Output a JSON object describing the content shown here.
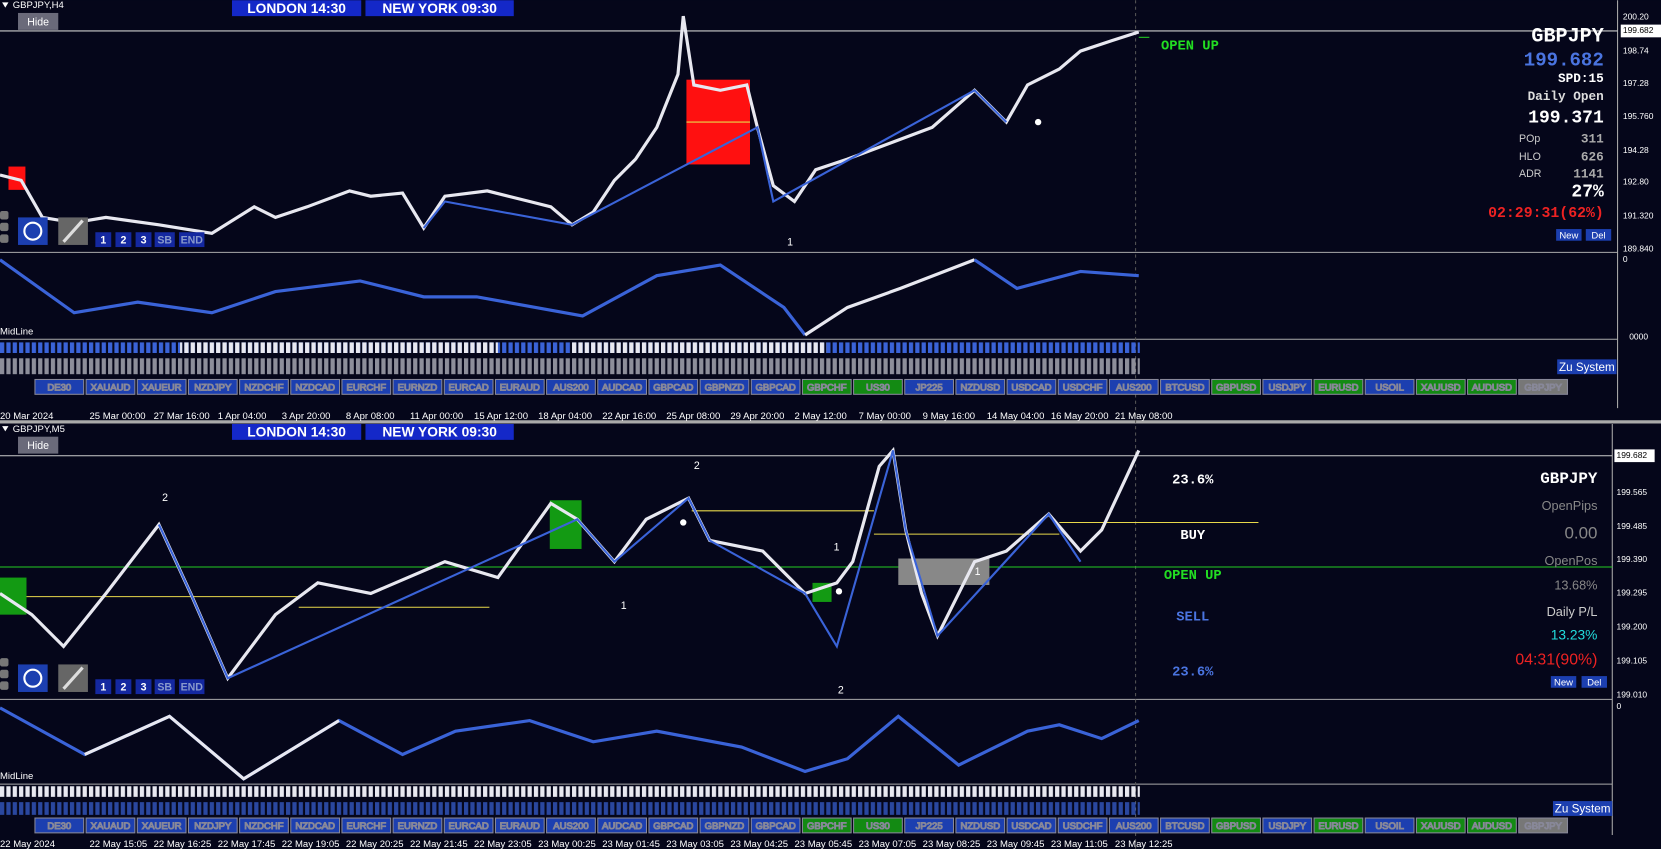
{
  "symbols": [
    {
      "label": "DE30",
      "color": "#1c3fb0"
    },
    {
      "label": "XAUAUD",
      "color": "#1c3fb0"
    },
    {
      "label": "XAUEUR",
      "color": "#1c3fb0"
    },
    {
      "label": "NZDJPY",
      "color": "#1c3fb0"
    },
    {
      "label": "NZDCHF",
      "color": "#1c3fb0"
    },
    {
      "label": "NZDCAD",
      "color": "#1c3fb0"
    },
    {
      "label": "EURCHF",
      "color": "#1c3fb0"
    },
    {
      "label": "EURNZD",
      "color": "#1c3fb0"
    },
    {
      "label": "EURCAD",
      "color": "#1c3fb0"
    },
    {
      "label": "EURAUD",
      "color": "#1c3fb0"
    },
    {
      "label": "AUS200",
      "color": "#1c3fb0"
    },
    {
      "label": "AUDCAD",
      "color": "#1c3fb0"
    },
    {
      "label": "GBPCAD",
      "color": "#1c3fb0"
    },
    {
      "label": "GBPNZD",
      "color": "#1c3fb0"
    },
    {
      "label": "GBPCAD",
      "color": "#1c3fb0"
    },
    {
      "label": "GBPCHF",
      "color": "#138a13"
    },
    {
      "label": "US30",
      "color": "#138a13"
    },
    {
      "label": "JP225",
      "color": "#1c3fb0"
    },
    {
      "label": "NZDUSD",
      "color": "#1c3fb0"
    },
    {
      "label": "USDCAD",
      "color": "#1c3fb0"
    },
    {
      "label": "USDCHF",
      "color": "#1c3fb0"
    },
    {
      "label": "AUS200",
      "color": "#1c3fb0"
    },
    {
      "label": "BTCUSD",
      "color": "#1c3fb0"
    },
    {
      "label": "GBPUSD",
      "color": "#138a13"
    },
    {
      "label": "USDJPY",
      "color": "#1c3fb0"
    },
    {
      "label": "EURUSD",
      "color": "#138a13"
    },
    {
      "label": "USOIL",
      "color": "#1c3fb0"
    },
    {
      "label": "XAUUSD",
      "color": "#138a13"
    },
    {
      "label": "AUDUSD",
      "color": "#138a13"
    },
    {
      "label": "GBPJPY",
      "color": "#777777"
    }
  ],
  "top_chart": {
    "symbol": "GBPJPY,H4",
    "hide": "Hide",
    "london": "LONDON  14:30",
    "newyork": "NEW YORK  09:30",
    "price_ticks": [
      "200.20",
      "199.682",
      "198.74",
      "197.28",
      "195.760",
      "194.28",
      "192.80",
      "191.320",
      "189.840"
    ],
    "osc_ticks": [
      "0",
      "0000"
    ],
    "midline": "MidLine",
    "zu": "Zu System",
    "tools": [
      "1",
      "2",
      "3",
      "SB",
      "END"
    ],
    "open_up": "OPEN UP",
    "wave": "1",
    "info": {
      "title": "GBPJPY",
      "price": "199.682",
      "spd": "SPD:15",
      "daily_open_label": "Daily Open",
      "daily_open": "199.371",
      "pop_label": "POp",
      "pop": "311",
      "hlo_label": "HLO",
      "hlo": "626",
      "adr_label": "ADR",
      "adr": "1141",
      "pct": "27%",
      "timer": "02:29:31(62%)",
      "new": "New",
      "del": "Del"
    },
    "dates": [
      "20 Mar 2024",
      "25 Mar 00:00",
      "27 Mar 16:00",
      "1 Apr 04:00",
      "3 Apr 20:00",
      "8 Apr 08:00",
      "11 Apr 00:00",
      "15 Apr 12:00",
      "18 Apr 04:00",
      "22 Apr 16:00",
      "25 Apr 08:00",
      "29 Apr 20:00",
      "2 May 12:00",
      "7 May 00:00",
      "9 May 16:00",
      "14 May 04:00",
      "16 May 20:00",
      "21 May 08:00"
    ]
  },
  "bottom_chart": {
    "symbol": "GBPJPY,M5",
    "hide": "Hide",
    "london": "LONDON  14:30",
    "newyork": "NEW YORK  09:30",
    "price_ticks": [
      "199.682",
      "199.565",
      "199.485",
      "199.390",
      "199.295",
      "199.200",
      "199.105",
      "199.010"
    ],
    "osc_ticks": [
      "0"
    ],
    "midline": "MidLine",
    "zu": "Zu System",
    "tools": [
      "1",
      "2",
      "3",
      "SB",
      "END"
    ],
    "levels": [
      "23.6%",
      "BUY",
      "OPEN UP",
      "SELL",
      "23.6%"
    ],
    "waves": [
      "2",
      "2",
      "1",
      "1",
      "1",
      "2"
    ],
    "info": {
      "title": "GBPJPY",
      "open_pips_label": "OpenPips",
      "open_pips": "0.00",
      "open_pos_label": "OpenPos",
      "open_pos": "13.68%",
      "daily_pl_label": "Daily P/L",
      "daily_pl": "13.23%",
      "timer": "04:31(90%)",
      "new": "New",
      "del": "Del"
    },
    "dates": [
      "22 May 2024",
      "22 May 15:05",
      "22 May 16:25",
      "22 May 17:45",
      "22 May 19:05",
      "22 May 20:25",
      "22 May 21:45",
      "22 May 23:05",
      "23 May 00:25",
      "23 May 01:45",
      "23 May 03:05",
      "23 May 04:25",
      "23 May 05:45",
      "23 May 07:05",
      "23 May 08:25",
      "23 May 09:45",
      "23 May 11:05",
      "23 May 12:25"
    ]
  }
}
